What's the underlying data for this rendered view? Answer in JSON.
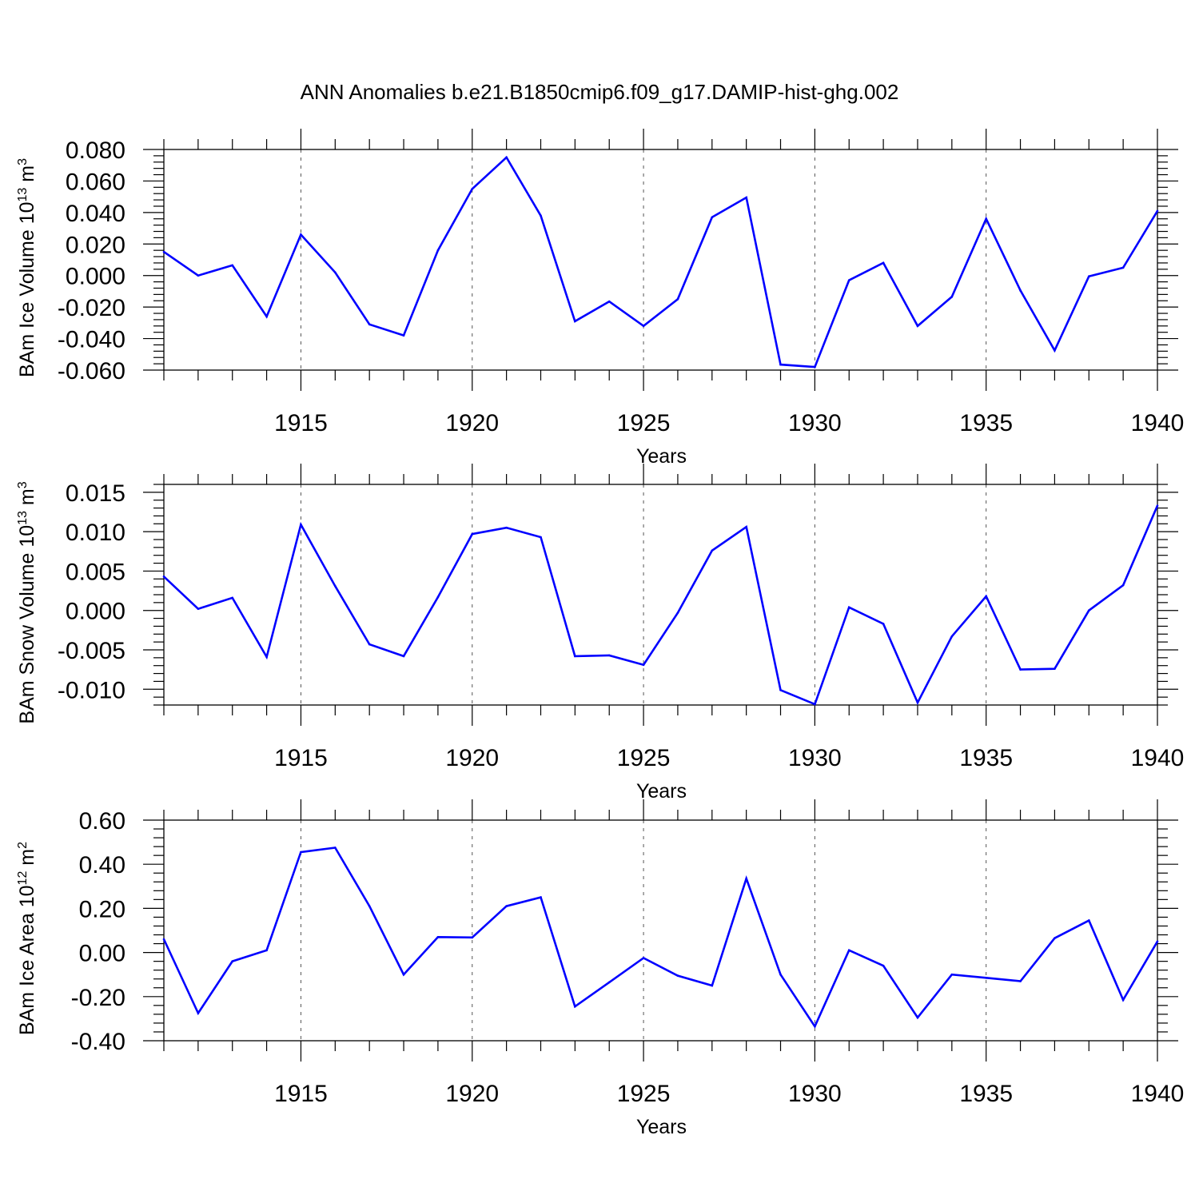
{
  "title": "ANN Anomalies b.e21.B1850cmip6.f09_g17.DAMIP-hist-ghg.002",
  "colors": {
    "line": "#0000ff",
    "axis": "#000000",
    "grid": "#555555"
  },
  "chart_data": [
    {
      "type": "line",
      "ylabel": {
        "prefix": "BAm Ice Volume 10",
        "exponent": "13",
        "unit": " m",
        "unit_exponent": "3"
      },
      "xlabel": "Years",
      "xlim": [
        1911,
        1940
      ],
      "ylim": [
        -0.06,
        0.08
      ],
      "xticks": [
        1915,
        1920,
        1925,
        1930,
        1935,
        1940
      ],
      "xtick_labels": [
        "1915",
        "1920",
        "1925",
        "1930",
        "1935",
        "1940"
      ],
      "yticks": [
        -0.06,
        -0.04,
        -0.02,
        0.0,
        0.02,
        0.04,
        0.06,
        0.08
      ],
      "ytick_labels": [
        "-0.060",
        "-0.040",
        "-0.020",
        "0.000",
        "0.020",
        "0.040",
        "0.060",
        "0.080"
      ],
      "grid": "vertical dashed at major x ticks",
      "x": [
        1911,
        1912,
        1913,
        1914,
        1915,
        1916,
        1917,
        1918,
        1919,
        1920,
        1921,
        1922,
        1923,
        1924,
        1925,
        1926,
        1927,
        1928,
        1929,
        1930,
        1931,
        1932,
        1933,
        1934,
        1935,
        1936,
        1937,
        1938,
        1939,
        1940
      ],
      "values": [
        0.015,
        0.0,
        0.0065,
        -0.026,
        0.026,
        0.002,
        -0.031,
        -0.038,
        0.016,
        0.055,
        0.075,
        0.038,
        -0.029,
        -0.0165,
        -0.032,
        -0.015,
        0.037,
        0.0495,
        -0.0565,
        -0.058,
        -0.003,
        0.008,
        -0.032,
        -0.0135,
        0.036,
        -0.0095,
        -0.0475,
        -0.0005,
        0.005,
        0.041
      ]
    },
    {
      "type": "line",
      "ylabel": {
        "prefix": "BAm Snow Volume 10",
        "exponent": "13",
        "unit": " m",
        "unit_exponent": "3"
      },
      "xlabel": "Years",
      "xlim": [
        1911,
        1940
      ],
      "ylim": [
        -0.012,
        0.016
      ],
      "xticks": [
        1915,
        1920,
        1925,
        1930,
        1935,
        1940
      ],
      "xtick_labels": [
        "1915",
        "1920",
        "1925",
        "1930",
        "1935",
        "1940"
      ],
      "yticks": [
        -0.01,
        -0.005,
        0.0,
        0.005,
        0.01,
        0.015
      ],
      "ytick_labels": [
        "-0.010",
        "-0.005",
        "0.000",
        "0.005",
        "0.010",
        "0.015"
      ],
      "grid": "vertical dashed at major x ticks",
      "x": [
        1911,
        1912,
        1913,
        1914,
        1915,
        1916,
        1917,
        1918,
        1919,
        1920,
        1921,
        1922,
        1923,
        1924,
        1925,
        1926,
        1927,
        1928,
        1929,
        1930,
        1931,
        1932,
        1933,
        1934,
        1935,
        1936,
        1937,
        1938,
        1939,
        1940
      ],
      "values": [
        0.0043,
        0.0002,
        0.0016,
        -0.0059,
        0.0109,
        0.0031,
        -0.0043,
        -0.0058,
        0.0017,
        0.0097,
        0.0105,
        0.0093,
        -0.0058,
        -0.0057,
        -0.0069,
        -0.0003,
        0.0076,
        0.0106,
        -0.0101,
        -0.0119,
        0.0004,
        -0.0017,
        -0.0117,
        -0.0033,
        0.0018,
        -0.0075,
        -0.0074,
        0.0,
        0.0032,
        0.0133
      ]
    },
    {
      "type": "line",
      "ylabel": {
        "prefix": "BAm Ice Area 10",
        "exponent": "12",
        "unit": " m",
        "unit_exponent": "2"
      },
      "xlabel": "Years",
      "xlim": [
        1911,
        1940
      ],
      "ylim": [
        -0.4,
        0.6
      ],
      "xticks": [
        1915,
        1920,
        1925,
        1930,
        1935,
        1940
      ],
      "xtick_labels": [
        "1915",
        "1920",
        "1925",
        "1930",
        "1935",
        "1940"
      ],
      "yticks": [
        -0.4,
        -0.2,
        0.0,
        0.2,
        0.4,
        0.6
      ],
      "ytick_labels": [
        "-0.40",
        "-0.20",
        "0.00",
        "0.20",
        "0.40",
        "0.60"
      ],
      "grid": "vertical dashed at major x ticks",
      "x": [
        1911,
        1912,
        1913,
        1914,
        1915,
        1916,
        1917,
        1918,
        1919,
        1920,
        1921,
        1922,
        1923,
        1924,
        1925,
        1926,
        1927,
        1928,
        1929,
        1930,
        1931,
        1932,
        1933,
        1934,
        1935,
        1936,
        1937,
        1938,
        1939,
        1940
      ],
      "values": [
        0.06,
        -0.275,
        -0.04,
        0.01,
        0.455,
        0.475,
        0.21,
        -0.1,
        0.07,
        0.068,
        0.21,
        0.25,
        -0.245,
        -0.135,
        -0.025,
        -0.105,
        -0.15,
        0.335,
        -0.1,
        -0.335,
        0.01,
        -0.06,
        -0.295,
        -0.1,
        -0.115,
        -0.13,
        0.065,
        0.145,
        -0.215,
        0.05
      ]
    }
  ]
}
